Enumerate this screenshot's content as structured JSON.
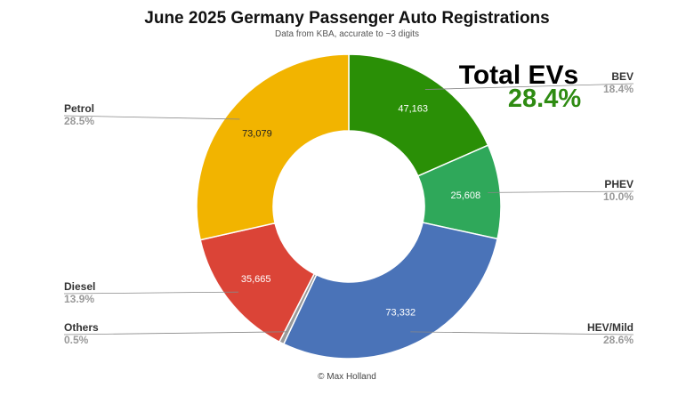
{
  "chart_data": {
    "type": "pie",
    "title": "June 2025 Germany Passenger Auto Registrations",
    "subtitle": "Data from KBA, accurate to ~3 digits",
    "credit": "© Max Holland",
    "annotation": {
      "title": "Total EVs",
      "value": "28.4%",
      "color": "#2e8b12"
    },
    "slices": [
      {
        "name": "BEV",
        "value": 47163,
        "value_label": "47,163",
        "percent": "18.4%",
        "color": "#2a8f06",
        "label_side": "right",
        "value_text_color": "#ffffff"
      },
      {
        "name": "PHEV",
        "value": 25608,
        "value_label": "25,608",
        "percent": "10.0%",
        "color": "#2fa85a",
        "label_side": "right",
        "value_text_color": "#ffffff"
      },
      {
        "name": "HEV/Mild",
        "value": 73332,
        "value_label": "73,332",
        "percent": "28.6%",
        "color": "#4a73b8",
        "label_side": "right",
        "value_text_color": "#ffffff"
      },
      {
        "name": "Others",
        "value": 1300,
        "value_label": "",
        "percent": "0.5%",
        "color": "#999999",
        "label_side": "left",
        "value_text_color": "#ffffff"
      },
      {
        "name": "Diesel",
        "value": 35665,
        "value_label": "35,665",
        "percent": "13.9%",
        "color": "#db4437",
        "label_side": "left",
        "value_text_color": "#ffffff"
      },
      {
        "name": "Petrol",
        "value": 73079,
        "value_label": "73,079",
        "percent": "28.5%",
        "color": "#f2b400",
        "label_side": "left",
        "value_text_color": "#222222"
      }
    ]
  }
}
